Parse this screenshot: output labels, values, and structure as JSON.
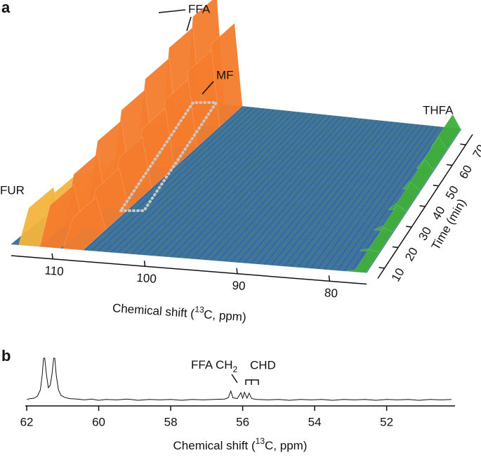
{
  "chart_data": [
    {
      "type": "surface",
      "panel": "a",
      "xlim": [
        114.5,
        76
      ],
      "xticks": [
        110,
        100,
        90,
        80
      ],
      "xlabel": [
        "Chemical shift (",
        "13",
        "C, ppm)"
      ],
      "ylim": [
        5,
        75
      ],
      "yticks": [
        10,
        20,
        30,
        40,
        50,
        60,
        70
      ],
      "ylabel": "Time (min)",
      "times": [
        10,
        20,
        30,
        40,
        50,
        60,
        70
      ],
      "surface_color": "#3d6fa8",
      "series": [
        {
          "name": "FUR",
          "color": "#f4b43c",
          "peaks": [
            {
              "x": 112.6,
              "values": [
                36,
                30,
                22,
                14,
                8,
                4,
                2
              ]
            }
          ]
        },
        {
          "name": "FFA",
          "color": "#f47c2c",
          "peaks": [
            {
              "x": 110.3,
              "values": [
                40,
                50,
                62,
                72,
                82,
                92,
                102
              ]
            },
            {
              "x": 107.8,
              "values": [
                30,
                38,
                48,
                56,
                64,
                72,
                78
              ]
            }
          ]
        },
        {
          "name": "THFA",
          "color": "#3fae3a",
          "peaks": [
            {
              "x": 77.2,
              "values": [
                2,
                3,
                5,
                7,
                9,
                11,
                13
              ]
            }
          ]
        }
      ],
      "annotations": [
        "MF"
      ]
    },
    {
      "type": "line",
      "panel": "b",
      "color": "#111111",
      "xlim": [
        62.04,
        50.1
      ],
      "xticks": [
        62,
        60,
        58,
        56,
        54,
        52
      ],
      "ylim": [
        0,
        10
      ],
      "xlabel": [
        "Chemical shift (",
        "13",
        "C, ppm)"
      ],
      "annotations": [
        "FFA CH",
        "2",
        "CHD"
      ],
      "x": [
        62.0,
        61.9,
        61.8,
        61.7,
        61.62,
        61.57,
        61.53,
        61.5,
        61.45,
        61.4,
        61.35,
        61.3,
        61.25,
        61.22,
        61.18,
        61.12,
        61.05,
        60.95,
        60.8,
        60.6,
        60.4,
        60.2,
        60.0,
        59.8,
        59.5,
        59.2,
        58.9,
        58.6,
        58.3,
        58.0,
        57.7,
        57.4,
        57.1,
        56.8,
        56.5,
        56.4,
        56.33,
        56.27,
        56.15,
        56.05,
        56.0,
        55.95,
        55.88,
        55.82,
        55.75,
        55.6,
        55.3,
        55.0,
        54.7,
        54.4,
        54.1,
        53.8,
        53.5,
        53.2,
        52.9,
        52.6,
        52.3,
        52.0,
        51.7,
        51.4,
        51.1,
        50.8,
        50.5,
        50.2
      ],
      "values": [
        0.2,
        0.4,
        0.5,
        1.0,
        2.5,
        6,
        10,
        10,
        6,
        3,
        3.5,
        6,
        10,
        10,
        6,
        2.5,
        1.2,
        0.7,
        0.4,
        0.3,
        0.1,
        0.3,
        0.0,
        0.2,
        0.1,
        0.3,
        0.0,
        0.2,
        0.1,
        0.2,
        0.0,
        0.2,
        0.1,
        0.2,
        0.3,
        0.6,
        2.2,
        0.6,
        0.4,
        1.8,
        0.5,
        1.9,
        0.5,
        1.7,
        0.4,
        0.2,
        0.1,
        0.2,
        0.0,
        0.2,
        0.1,
        0.2,
        0.0,
        0.2,
        0.1,
        0.2,
        0.0,
        0.2,
        0.1,
        0.2,
        0.0,
        0.2,
        0.1,
        0.2
      ]
    }
  ]
}
